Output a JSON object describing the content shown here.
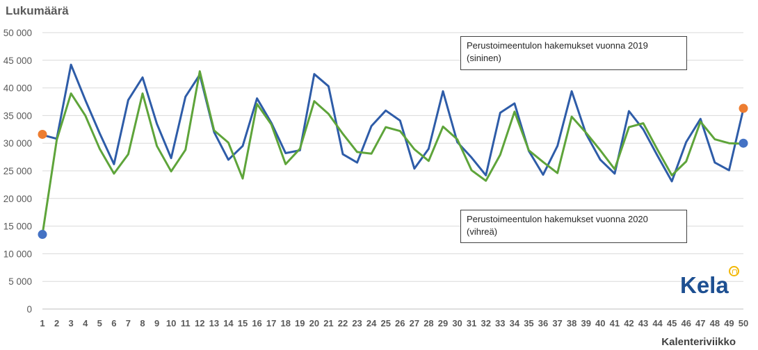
{
  "chart_data": {
    "type": "line",
    "ylabel": "Lukumäärä",
    "xlabel": "Kalenteriviikko",
    "ylim": [
      0,
      50000
    ],
    "yticks": [
      0,
      5000,
      10000,
      15000,
      20000,
      25000,
      30000,
      35000,
      40000,
      45000,
      50000
    ],
    "ytick_labels": [
      "0",
      "5 000",
      "10 000",
      "15 000",
      "20 000",
      "25 000",
      "30 000",
      "35 000",
      "40 000",
      "45 000",
      "50 000"
    ],
    "categories": [
      "1",
      "2",
      "3",
      "4",
      "5",
      "6",
      "7",
      "8",
      "9",
      "10",
      "11",
      "12",
      "13",
      "14",
      "15",
      "16",
      "17",
      "18",
      "19",
      "20",
      "21",
      "22",
      "23",
      "24",
      "25",
      "26",
      "27",
      "28",
      "29",
      "30",
      "31",
      "32",
      "33",
      "34",
      "35",
      "36",
      "37",
      "38",
      "39",
      "40",
      "41",
      "42",
      "43",
      "44",
      "45",
      "46",
      "47",
      "48",
      "49",
      "50"
    ],
    "grid": true,
    "series": [
      {
        "color": "#2e5ca8",
        "values": [
          31500,
          30800,
          44200,
          37800,
          31800,
          26200,
          37800,
          41900,
          33500,
          27300,
          38400,
          42400,
          32000,
          27000,
          29500,
          38100,
          33700,
          28200,
          28700,
          42500,
          40300,
          28000,
          26500,
          33100,
          35900,
          34100,
          25400,
          29000,
          39400,
          30200,
          27400,
          24200,
          35500,
          37200,
          28600,
          24300,
          29500,
          39400,
          31700,
          27000,
          24500,
          35800,
          32500,
          27700,
          23100,
          30200,
          34400,
          26500,
          25100,
          36200
        ]
      },
      {
        "color": "#5ea43a",
        "values": [
          13500,
          30600,
          39000,
          35000,
          29000,
          24500,
          28000,
          39000,
          29500,
          24900,
          28800,
          43000,
          32300,
          30100,
          23600,
          37100,
          33400,
          26200,
          29000,
          37600,
          35300,
          31700,
          28400,
          28100,
          32900,
          32200,
          28900,
          26800,
          33000,
          30700,
          25100,
          23200,
          27900,
          35700,
          28700,
          26600,
          24600,
          34800,
          31900,
          28700,
          25300,
          32900,
          33600,
          28800,
          24200,
          26700,
          33900,
          30700,
          30000,
          29900
        ]
      }
    ],
    "markers": [
      {
        "x": "1",
        "y": 31600,
        "color": "#ed7d31"
      },
      {
        "x": "1",
        "y": 13500,
        "color": "#4472c4"
      },
      {
        "x": "50",
        "y": 36300,
        "color": "#ed7d31"
      },
      {
        "x": "50",
        "y": 30000,
        "color": "#4472c4"
      }
    ],
    "annotations": [
      {
        "lines": [
          "Perustoimeentulon hakemukset vuonna 2019",
          "(sininen)"
        ]
      },
      {
        "lines": [
          "Perustoimeentulon hakemukset vuonna 2020",
          "(vihreä)"
        ]
      }
    ]
  },
  "logo": {
    "text": "Kela"
  }
}
